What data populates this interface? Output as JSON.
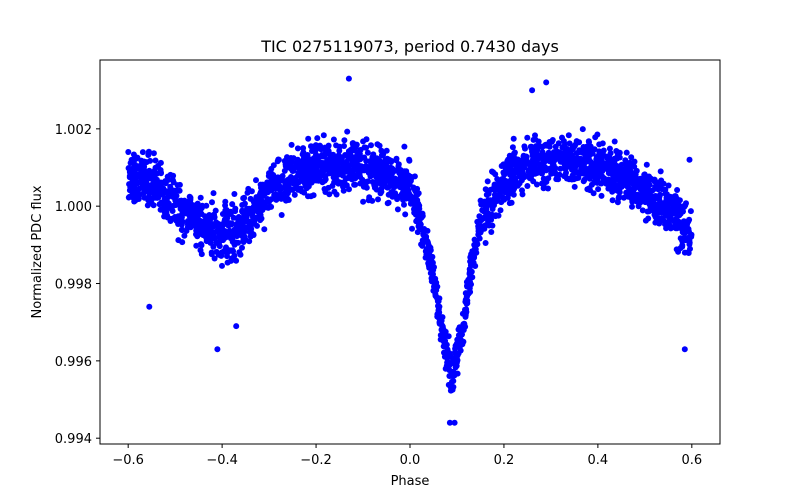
{
  "chart_data": {
    "type": "scatter",
    "title": "TIC 0275119073, period 0.7430 days",
    "xlabel": "Phase",
    "ylabel": "Normalized PDC flux",
    "xlim": [
      -0.66,
      0.66
    ],
    "ylim": [
      0.99385,
      1.00378
    ],
    "x_ticks": [
      -0.6,
      -0.4,
      -0.2,
      0.0,
      0.2,
      0.4,
      0.6
    ],
    "x_tick_labels": [
      "−0.6",
      "−0.4",
      "−0.2",
      "0.0",
      "0.2",
      "0.4",
      "0.6"
    ],
    "y_ticks": [
      0.994,
      0.996,
      0.998,
      1.0,
      1.002
    ],
    "y_tick_labels": [
      "0.994",
      "0.996",
      "0.998",
      "1.000",
      "1.002"
    ],
    "grid": false,
    "legend": "none",
    "series": [
      {
        "name": "PDC flux",
        "color": "#0000ff",
        "marker": "circle",
        "trend": {
          "x": [
            -0.6,
            -0.55,
            -0.5,
            -0.45,
            -0.4,
            -0.35,
            -0.3,
            -0.25,
            -0.2,
            -0.15,
            -0.1,
            -0.05,
            0.0,
            0.03,
            0.05,
            0.07,
            0.09,
            0.11,
            0.13,
            0.15,
            0.2,
            0.25,
            0.3,
            0.35,
            0.4,
            0.45,
            0.5,
            0.55,
            0.6
          ],
          "y": [
            1.0008,
            1.0006,
            1.0001,
            0.9996,
            0.9992,
            0.9996,
            1.0004,
            1.0008,
            1.001,
            1.0011,
            1.001,
            1.0008,
            1.0005,
            0.9994,
            0.9982,
            0.9966,
            0.9956,
            0.9967,
            0.9984,
            0.9996,
            1.0007,
            1.0011,
            1.0012,
            1.0012,
            1.001,
            1.0008,
            1.0004,
            1.0,
            0.9992
          ]
        },
        "scatter_sigma": 0.0006,
        "outliers": [
          {
            "x": -0.13,
            "y": 1.0033
          },
          {
            "x": 0.29,
            "y": 1.0032
          },
          {
            "x": 0.26,
            "y": 1.003
          },
          {
            "x": -0.41,
            "y": 0.9963
          },
          {
            "x": 0.585,
            "y": 0.9963
          },
          {
            "x": 0.085,
            "y": 0.9944
          },
          {
            "x": 0.095,
            "y": 0.9944
          },
          {
            "x": -0.555,
            "y": 0.9974
          },
          {
            "x": -0.37,
            "y": 0.9969
          },
          {
            "x": 0.595,
            "y": 1.0012
          }
        ]
      }
    ]
  }
}
